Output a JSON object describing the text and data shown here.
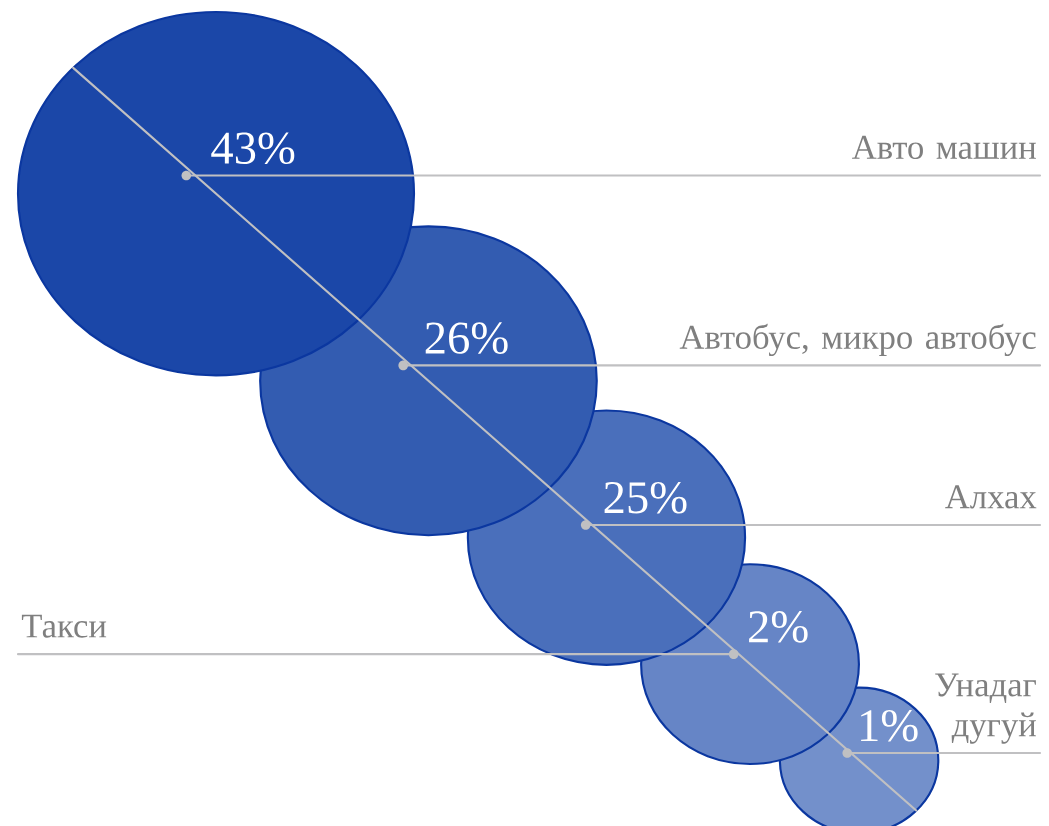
{
  "chart_data": {
    "type": "other",
    "categories": [
      "Авто машин",
      "Автобус, микро автобус",
      "Алхах",
      "Такси",
      "Унадаг дугуй"
    ],
    "values": [
      43,
      26,
      25,
      2,
      1
    ],
    "value_labels": [
      "43%",
      "26%",
      "25%",
      "2%",
      "1%"
    ],
    "colors": [
      "#1b47a8",
      "#335cb1",
      "#4a6fbb",
      "#6685c6",
      "#7390cb"
    ]
  }
}
